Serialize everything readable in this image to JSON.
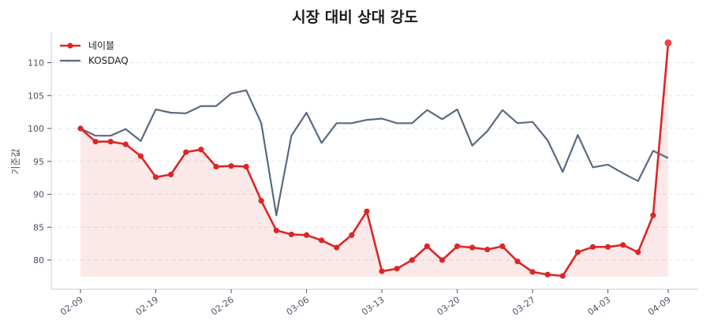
{
  "chart_data": {
    "type": "line",
    "title": "시장 대비 상대 강도",
    "xlabel": "",
    "ylabel": "기준값",
    "ylim": [
      76,
      114.5
    ],
    "yticks": [
      80,
      85,
      90,
      95,
      100,
      105,
      110
    ],
    "grid": true,
    "legend_position": "upper left",
    "x": [
      "02-09",
      "02-10",
      "02-11",
      "02-12",
      "02-13",
      "02-19",
      "02-20",
      "02-23",
      "02-24",
      "02-25",
      "02-26",
      "02-27",
      "03-03",
      "03-04",
      "03-05",
      "03-06",
      "03-09",
      "03-10",
      "03-11",
      "03-12",
      "03-13",
      "03-16",
      "03-17",
      "03-18",
      "03-19",
      "03-20",
      "03-23",
      "03-24",
      "03-25",
      "03-26",
      "03-27",
      "03-30",
      "03-31",
      "04-01",
      "04-02",
      "04-03",
      "04-06",
      "04-07",
      "04-08",
      "04-09"
    ],
    "xtick_labels": [
      "02-09",
      "02-19",
      "02-26",
      "03-06",
      "03-13",
      "03-20",
      "03-27",
      "04-03",
      "04-09"
    ],
    "xtick_indices": [
      0,
      5,
      10,
      15,
      20,
      25,
      30,
      35,
      39
    ],
    "series": [
      {
        "name": "네이블",
        "color": "#dc2626",
        "marker": "circle",
        "fill": true,
        "values": [
          100.0,
          98.0,
          98.0,
          97.6,
          95.8,
          92.6,
          93.0,
          96.4,
          96.8,
          94.2,
          94.3,
          94.2,
          89.0,
          84.5,
          83.9,
          83.8,
          83.0,
          81.9,
          83.8,
          87.4,
          78.3,
          78.7,
          80.0,
          82.1,
          80.0,
          82.1,
          81.9,
          81.6,
          82.1,
          79.8,
          78.2,
          77.8,
          77.6,
          81.2,
          82.0,
          82.0,
          82.3,
          81.2,
          86.8,
          113.0
        ]
      },
      {
        "name": "KOSDAQ",
        "color": "#5a6a82",
        "marker": "none",
        "fill": false,
        "values": [
          100.0,
          98.9,
          98.9,
          99.9,
          98.1,
          102.9,
          102.4,
          102.3,
          103.4,
          103.4,
          105.3,
          105.8,
          100.8,
          86.8,
          98.9,
          102.4,
          97.8,
          100.8,
          100.8,
          101.3,
          101.5,
          100.8,
          100.8,
          102.8,
          101.4,
          102.9,
          97.4,
          99.6,
          102.8,
          100.8,
          101.0,
          98.2,
          93.4,
          99.0,
          94.1,
          94.5,
          93.2,
          92.0,
          96.6,
          95.5
        ]
      }
    ]
  }
}
